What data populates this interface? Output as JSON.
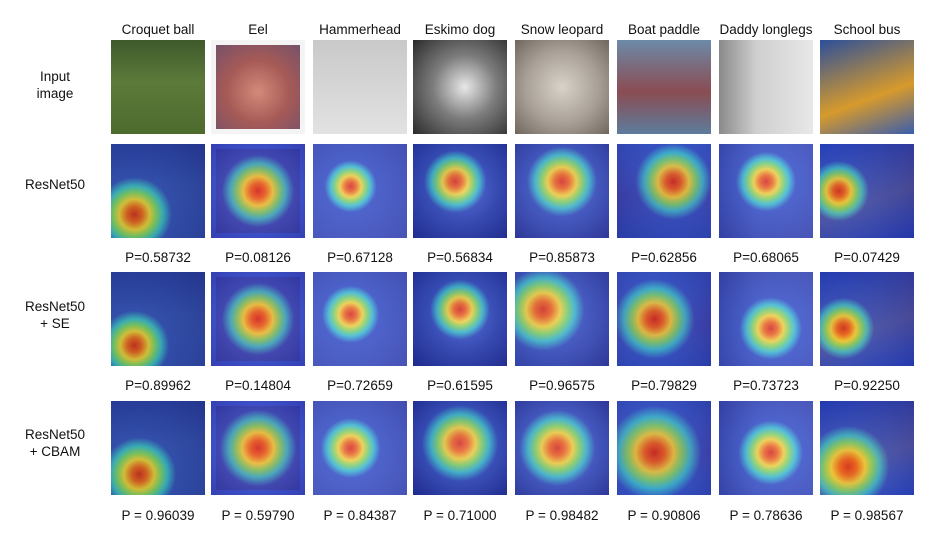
{
  "columns": [
    "Croquet ball",
    "Eel",
    "Hammerhead",
    "Eskimo dog",
    "Snow leopard",
    "Boat paddle",
    "Daddy longlegs",
    "School bus"
  ],
  "rows": [
    {
      "label": "Input\nimage",
      "type": "input"
    },
    {
      "label": "ResNet50",
      "type": "heat",
      "probs": [
        "P=0.58732",
        "P=0.08126",
        "P=0.67128",
        "P=0.56834",
        "P=0.85873",
        "P=0.62856",
        "P=0.68065",
        "P=0.07429"
      ]
    },
    {
      "label": "ResNet50\n+ SE",
      "type": "heat",
      "probs": [
        "P=0.89962",
        "P=0.14804",
        "P=0.72659",
        "P=0.61595",
        "P=0.96575",
        "P=0.79829",
        "P=0.73723",
        "P=0.92250"
      ]
    },
    {
      "label": "ResNet50\n+ CBAM",
      "type": "heat",
      "probs": [
        "P = 0.96039",
        "P = 0.59790",
        "P = 0.84387",
        "P = 0.71000",
        "P = 0.98482",
        "P = 0.90806",
        "P = 0.78636",
        "P = 0.98567"
      ]
    }
  ]
}
